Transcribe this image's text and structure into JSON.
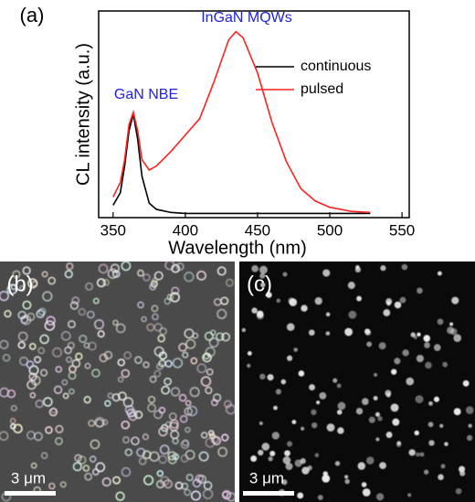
{
  "chart_data": {
    "type": "line",
    "xlabel": "Wavelength (nm)",
    "ylabel": "CL intensity (a.u.)",
    "xlim": [
      340,
      555
    ],
    "ylim": [
      0,
      1
    ],
    "xticks": [
      350,
      400,
      450,
      500,
      550
    ],
    "legend": "upper right",
    "annotations": [
      "InGaN MQWs",
      "GaN NBE"
    ],
    "annotation_color": "#1f1fe0",
    "series": [
      {
        "name": "continuous",
        "color": "#000000",
        "x": [
          350,
          355,
          358,
          361,
          364,
          367,
          370,
          375,
          380,
          390,
          400,
          450,
          500,
          528
        ],
        "values": [
          0.06,
          0.12,
          0.25,
          0.42,
          0.5,
          0.38,
          0.2,
          0.07,
          0.04,
          0.025,
          0.02,
          0.02,
          0.02,
          0.02
        ]
      },
      {
        "name": "pulsed",
        "color": "#ff2020",
        "x": [
          350,
          355,
          358,
          361,
          364,
          367,
          370,
          375,
          380,
          390,
          400,
          410,
          420,
          430,
          435,
          440,
          450,
          460,
          470,
          480,
          490,
          500,
          515,
          528
        ],
        "values": [
          0.1,
          0.17,
          0.28,
          0.45,
          0.51,
          0.42,
          0.28,
          0.23,
          0.25,
          0.32,
          0.4,
          0.48,
          0.66,
          0.86,
          0.9,
          0.87,
          0.7,
          0.46,
          0.27,
          0.14,
          0.08,
          0.05,
          0.03,
          0.025
        ]
      }
    ]
  },
  "panel_labels": [
    "(a)",
    "(b)",
    "(c)"
  ],
  "scale_bars": [
    "3 μm",
    "3 μm"
  ]
}
